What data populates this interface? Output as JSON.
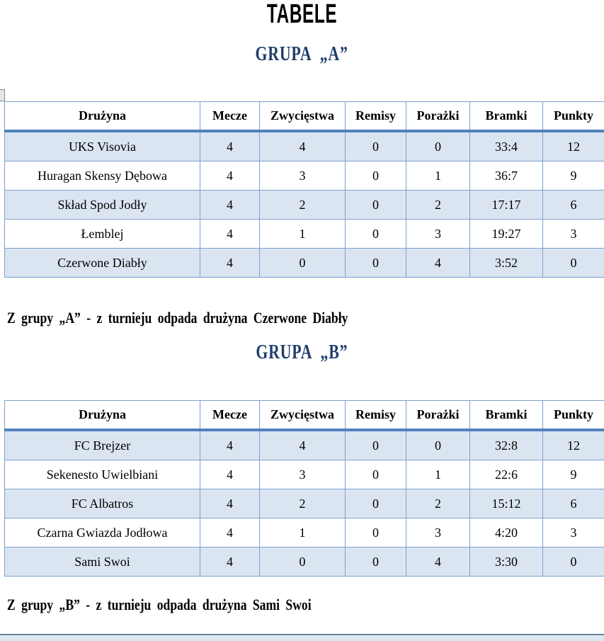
{
  "page": {
    "title": "TABELE"
  },
  "colors": {
    "heading_blue": "#1f3c6e",
    "thick_border_blue": "#4f81bd",
    "grid_border_blue": "#7ba0cd",
    "band_row_fill": "#dbe5f1"
  },
  "groups": [
    {
      "heading": "GRUPA  „A”",
      "note": "Z grupy „A” - z turnieju odpada drużyna Czerwone Diabły",
      "table": {
        "headers": [
          "Drużyna",
          "Mecze",
          "Zwycięstwa",
          "Remisy",
          "Porażki",
          "Bramki",
          "Punkty"
        ],
        "rows": [
          [
            "UKS Visovia",
            "4",
            "4",
            "0",
            "0",
            "33:4",
            "12"
          ],
          [
            "Huragan Skensy Dębowa",
            "4",
            "3",
            "0",
            "1",
            "36:7",
            "9"
          ],
          [
            "Skład Spod Jodły",
            "4",
            "2",
            "0",
            "2",
            "17:17",
            "6"
          ],
          [
            "Łemblej",
            "4",
            "1",
            "0",
            "3",
            "19:27",
            "3"
          ],
          [
            "Czerwone Diabły",
            "4",
            "0",
            "0",
            "4",
            "3:52",
            "0"
          ]
        ]
      }
    },
    {
      "heading": "GRUPA  „B”",
      "note": "Z grupy „B” - z turnieju odpada drużyna Sami Swoi",
      "table": {
        "headers": [
          "Drużyna",
          "Mecze",
          "Zwycięstwa",
          "Remisy",
          "Porażki",
          "Bramki",
          "Punkty"
        ],
        "rows": [
          [
            "FC Brejzer",
            "4",
            "4",
            "0",
            "0",
            "32:8",
            "12"
          ],
          [
            "Sekenesto Uwielbiani",
            "4",
            "3",
            "0",
            "1",
            "22:6",
            "9"
          ],
          [
            "FC Albatros",
            "4",
            "2",
            "0",
            "2",
            "15:12",
            "6"
          ],
          [
            "Czarna Gwiazda Jodłowa",
            "4",
            "1",
            "0",
            "3",
            "4:20",
            "3"
          ],
          [
            "Sami Swoi",
            "4",
            "0",
            "0",
            "4",
            "3:30",
            "0"
          ]
        ]
      }
    }
  ]
}
